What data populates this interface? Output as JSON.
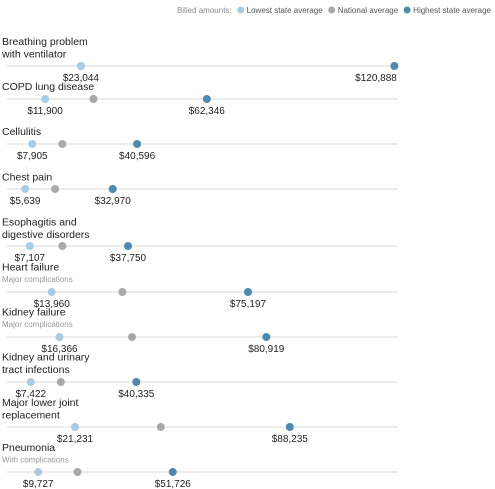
{
  "legend": {
    "title": "Billed amounts:",
    "items": [
      {
        "key": "low",
        "label": "Lowest state average"
      },
      {
        "key": "nat",
        "label": "National average"
      },
      {
        "key": "high",
        "label": "Highest state average"
      }
    ]
  },
  "colors": {
    "low": "#a9cbe3",
    "nat": "#a9a9a9",
    "high": "#4f89ad",
    "track": "#d9d9d9",
    "text": "#222222",
    "subtext": "#9a9a9a"
  },
  "chart_data": {
    "type": "scatter",
    "title": "",
    "xlabel": "",
    "ylabel": "",
    "xlim": [
      0,
      122000
    ],
    "grid": false,
    "legend_position": "top-right",
    "series": [
      {
        "name": "Lowest state average",
        "key": "low"
      },
      {
        "name": "National average",
        "key": "nat"
      },
      {
        "name": "Highest state average",
        "key": "high"
      }
    ],
    "rows": [
      {
        "lines": [
          "Breathing problem",
          "with ventilator"
        ],
        "sub": "",
        "low": 23044,
        "nat": 23044,
        "high": 120888,
        "low_label": "$23,044",
        "high_label": "$120,888"
      },
      {
        "lines": [
          "COPD lung disease"
        ],
        "sub": "",
        "low": 11900,
        "nat": 27000,
        "high": 62346,
        "low_label": "$11,900",
        "high_label": "$62,346"
      },
      {
        "lines": [
          "Cellulitis"
        ],
        "sub": "",
        "low": 7905,
        "nat": 17300,
        "high": 40596,
        "low_label": "$7,905",
        "high_label": "$40,596"
      },
      {
        "lines": [
          "Chest pain"
        ],
        "sub": "",
        "low": 5639,
        "nat": 15000,
        "high": 32970,
        "low_label": "$5,639",
        "high_label": "$32,970"
      },
      {
        "lines": [
          "Esophagitis and",
          "digestive disorders"
        ],
        "sub": "",
        "low": 7107,
        "nat": 17300,
        "high": 37750,
        "low_label": "$7,107",
        "high_label": "$37,750"
      },
      {
        "lines": [
          "Heart failure"
        ],
        "sub": "Major complications",
        "low": 13960,
        "nat": 36000,
        "high": 75197,
        "low_label": "$13,960",
        "high_label": "$75,197"
      },
      {
        "lines": [
          "Kidney failure"
        ],
        "sub": "Major complications",
        "low": 16366,
        "nat": 39000,
        "high": 80919,
        "low_label": "$16,366",
        "high_label": "$80,919"
      },
      {
        "lines": [
          "Kidney and urinary",
          "tract infections"
        ],
        "sub": "",
        "low": 7422,
        "nat": 16800,
        "high": 40335,
        "low_label": "$7,422",
        "high_label": "$40,335"
      },
      {
        "lines": [
          "Major lower joint",
          "replacement"
        ],
        "sub": "",
        "low": 21231,
        "nat": 48000,
        "high": 88235,
        "low_label": "$21,231",
        "high_label": "$88,235"
      },
      {
        "lines": [
          "Pneumonia"
        ],
        "sub": "With complications",
        "low": 9727,
        "nat": 22000,
        "high": 51726,
        "low_label": "$9,727",
        "high_label": "$51,726"
      }
    ]
  }
}
